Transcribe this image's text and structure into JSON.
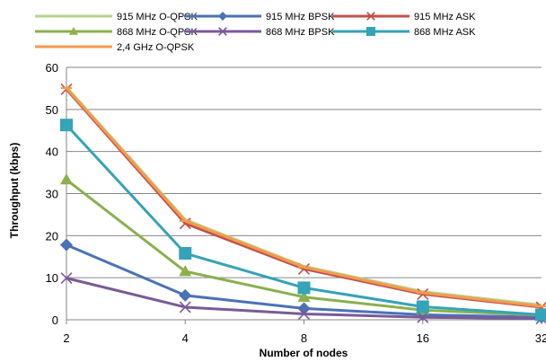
{
  "chart_data": {
    "type": "line",
    "title": "",
    "xlabel": "Number of nodes",
    "ylabel": "Throughput (kbps)",
    "categories": [
      "2",
      "4",
      "8",
      "16",
      "32"
    ],
    "ylim": [
      0,
      60
    ],
    "yticks": [
      0,
      10,
      20,
      30,
      40,
      50,
      60
    ],
    "grid": true,
    "legend": "top",
    "series": [
      {
        "name": "915 MHz O-QPSK",
        "color": "#b6d38d",
        "marker": "none",
        "values": [
          55.3,
          23.8,
          12.7,
          6.7,
          3.5
        ]
      },
      {
        "name": "915 MHz BPSK",
        "color": "#4a72b8",
        "marker": "diamond",
        "values": [
          17.8,
          5.8,
          2.7,
          1.2,
          0.6
        ]
      },
      {
        "name": "915 MHz ASK",
        "color": "#c0504d",
        "marker": "x",
        "values": [
          54.8,
          22.9,
          12.1,
          6.1,
          3.0
        ]
      },
      {
        "name": "868 MHz O-QPSK",
        "color": "#8bb04d",
        "marker": "triangle",
        "values": [
          33.3,
          11.5,
          5.4,
          2.3,
          1.1
        ]
      },
      {
        "name": "868 MHz BPSK",
        "color": "#7a5a9a",
        "marker": "x",
        "values": [
          9.9,
          3.0,
          1.4,
          0.6,
          0.3
        ]
      },
      {
        "name": "868 MHz ASK",
        "color": "#35a3b8",
        "marker": "square",
        "values": [
          46.3,
          15.8,
          7.6,
          3.1,
          1.2
        ]
      },
      {
        "name": "2,4 GHz O-QPSK",
        "color": "#f59a4c",
        "marker": "dash",
        "values": [
          55.1,
          23.5,
          12.5,
          6.4,
          3.2
        ]
      }
    ]
  }
}
